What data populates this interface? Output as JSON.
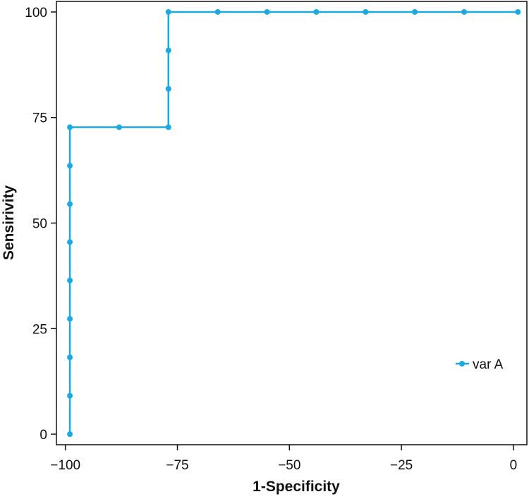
{
  "chart_data": {
    "type": "line",
    "title": "",
    "xlabel": "1-Specificity",
    "ylabel": "Sensirivity",
    "xlim": [
      -102,
      3
    ],
    "ylim": [
      -2.5,
      102.5
    ],
    "xticks": [
      -100,
      -75,
      -50,
      -25,
      0
    ],
    "xtick_labels": [
      "−100",
      "−75",
      "−50",
      "−25",
      "0"
    ],
    "yticks": [
      0,
      25,
      50,
      75,
      100
    ],
    "ytick_labels": [
      "0",
      "25",
      "50",
      "75",
      "100"
    ],
    "grid": false,
    "legend_position": "right",
    "series": [
      {
        "name": "var A",
        "color": "#1ba9e1",
        "step": "vertical-then-horizontal",
        "x": [
          -99,
          -99,
          -99,
          -99,
          -99,
          -99,
          -99,
          -99,
          -99,
          -88,
          -77,
          -77,
          -77,
          -77,
          -66,
          -55,
          -44,
          -33,
          -22,
          -11,
          1
        ],
        "y": [
          0,
          9.1,
          18.2,
          27.3,
          36.4,
          45.5,
          54.5,
          63.6,
          72.7,
          72.7,
          72.7,
          81.8,
          90.9,
          100,
          100,
          100,
          100,
          100,
          100,
          100,
          100
        ]
      }
    ]
  }
}
